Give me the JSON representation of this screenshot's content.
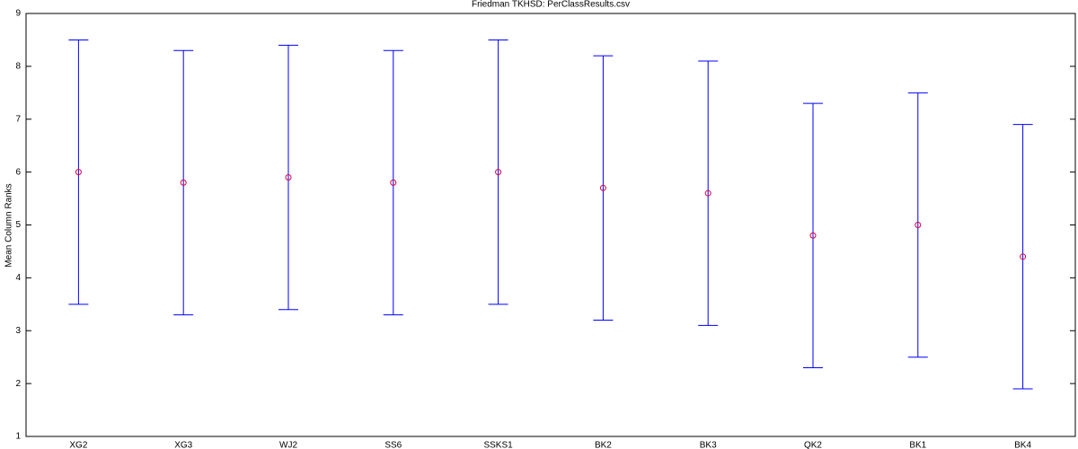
{
  "chart_data": {
    "type": "errorbar",
    "title": "Friedman TKHSD: PerClassResults.csv",
    "y_label": "Mean Column Ranks",
    "categories": [
      "XG2",
      "XG3",
      "WJ2",
      "SS6",
      "SSKS1",
      "BK2",
      "BK3",
      "QK2",
      "BK1",
      "BK4"
    ],
    "values": [
      6.0,
      5.8,
      5.9,
      5.8,
      6.0,
      5.7,
      5.6,
      4.8,
      5.0,
      4.4
    ],
    "errors": [
      2.5,
      2.5,
      2.5,
      2.5,
      2.5,
      2.5,
      2.5,
      2.5,
      2.5,
      2.5
    ],
    "bar_color": "#0000ff",
    "marker_color": "#e0003c",
    "ylim": [
      1,
      9
    ],
    "yticks": [
      1,
      2,
      3,
      4,
      5,
      6,
      7,
      8,
      9
    ]
  }
}
